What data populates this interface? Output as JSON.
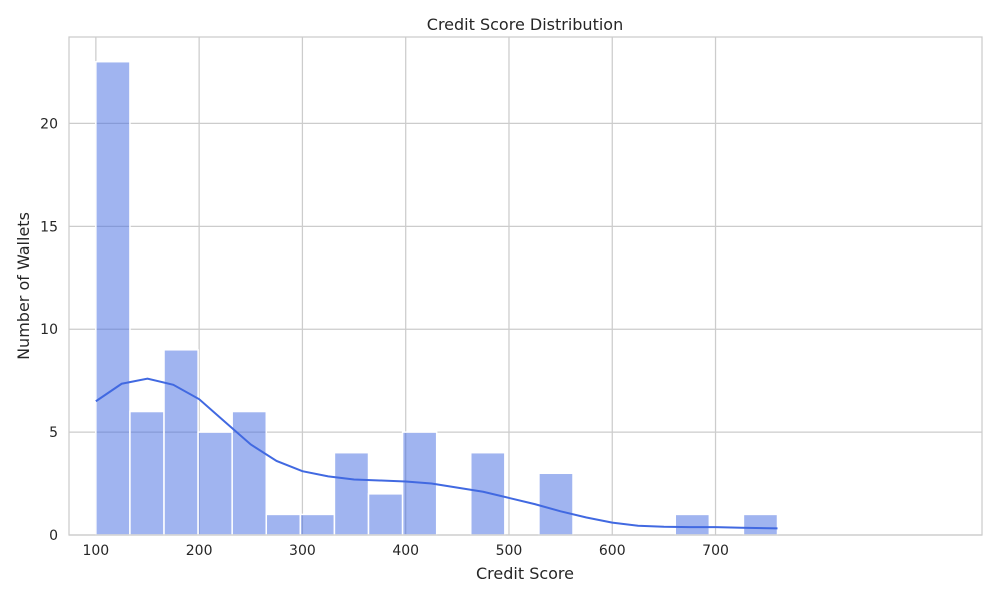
{
  "chart_data": {
    "type": "bar",
    "title": "Credit Score Distribution",
    "xlabel": "Credit Score",
    "ylabel": "Number of Wallets",
    "xlim": [
      74,
      958
    ],
    "ylim": [
      0,
      24.2
    ],
    "x_ticks": [
      100,
      200,
      300,
      400,
      500,
      600,
      700
    ],
    "y_ticks": [
      0,
      5,
      10,
      15,
      20
    ],
    "grid": true,
    "bin_width": 33,
    "bins": [
      {
        "start": 100,
        "end": 133,
        "count": 23
      },
      {
        "start": 133,
        "end": 166,
        "count": 6
      },
      {
        "start": 166,
        "end": 199,
        "count": 9
      },
      {
        "start": 199,
        "end": 232,
        "count": 5
      },
      {
        "start": 232,
        "end": 265,
        "count": 6
      },
      {
        "start": 265,
        "end": 298,
        "count": 1
      },
      {
        "start": 298,
        "end": 331,
        "count": 1
      },
      {
        "start": 331,
        "end": 364,
        "count": 4
      },
      {
        "start": 364,
        "end": 397,
        "count": 2
      },
      {
        "start": 397,
        "end": 430,
        "count": 5
      },
      {
        "start": 430,
        "end": 463,
        "count": 0
      },
      {
        "start": 463,
        "end": 496,
        "count": 4
      },
      {
        "start": 496,
        "end": 529,
        "count": 0
      },
      {
        "start": 529,
        "end": 562,
        "count": 3
      },
      {
        "start": 562,
        "end": 595,
        "count": 0
      },
      {
        "start": 595,
        "end": 628,
        "count": 0
      },
      {
        "start": 628,
        "end": 661,
        "count": 0
      },
      {
        "start": 661,
        "end": 694,
        "count": 1
      },
      {
        "start": 694,
        "end": 727,
        "count": 0
      },
      {
        "start": 727,
        "end": 760,
        "count": 1
      }
    ],
    "kde": {
      "x": [
        100,
        125,
        150,
        175,
        200,
        225,
        250,
        275,
        300,
        325,
        350,
        375,
        400,
        425,
        450,
        475,
        500,
        525,
        550,
        575,
        600,
        625,
        650,
        675,
        700,
        725,
        760
      ],
      "y": [
        6.5,
        7.35,
        7.6,
        7.3,
        6.6,
        5.5,
        4.4,
        3.6,
        3.1,
        2.85,
        2.7,
        2.65,
        2.6,
        2.5,
        2.3,
        2.1,
        1.8,
        1.5,
        1.15,
        0.85,
        0.6,
        0.45,
        0.4,
        0.38,
        0.38,
        0.35,
        0.32
      ]
    },
    "colors": {
      "bar_fill": "#4169e1",
      "bar_opacity": 0.5,
      "kde_line": "#4169e1",
      "grid": "#cccccc",
      "spine": "#cccccc",
      "text": "#262626"
    }
  }
}
